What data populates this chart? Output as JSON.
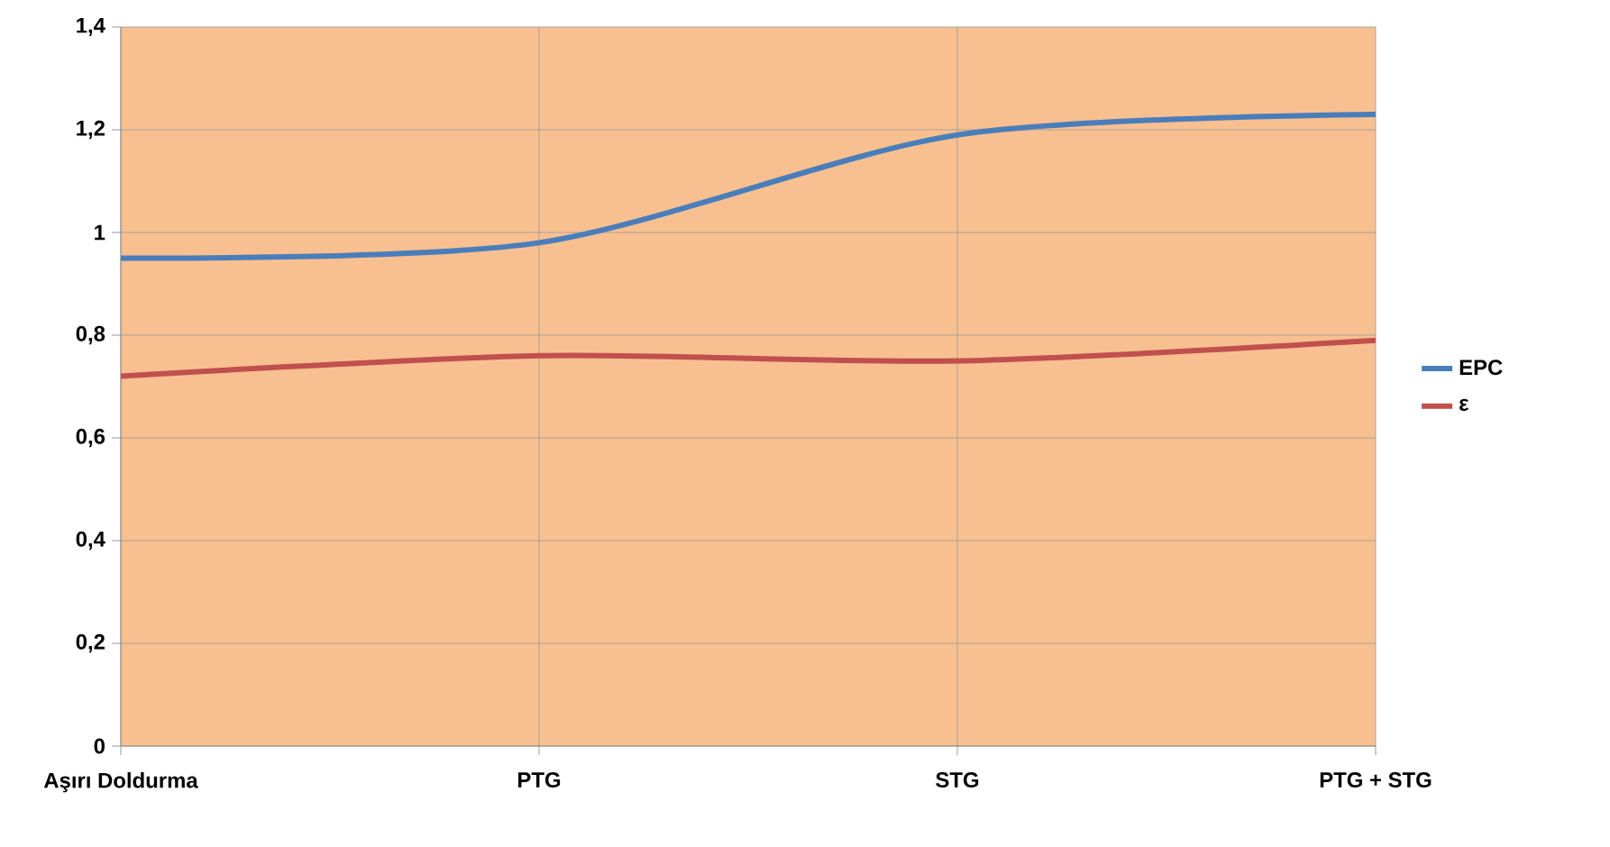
{
  "chart_data": {
    "type": "line",
    "categories": [
      "Aşırı Doldurma",
      "PTG",
      "STG",
      "PTG + STG"
    ],
    "series": [
      {
        "name": "EPC",
        "color": "#4a7ebb",
        "values": [
          0.95,
          0.98,
          1.19,
          1.23
        ]
      },
      {
        "name": "ε",
        "color": "#c0504d",
        "values": [
          0.72,
          0.76,
          0.75,
          0.79
        ]
      }
    ],
    "ylim": [
      0,
      1.4
    ],
    "yticks": [
      {
        "value": 0,
        "label": "0"
      },
      {
        "value": 0.2,
        "label": "0,2"
      },
      {
        "value": 0.4,
        "label": "0,4"
      },
      {
        "value": 0.6,
        "label": "0,6"
      },
      {
        "value": 0.8,
        "label": "0,8"
      },
      {
        "value": 1,
        "label": "1"
      },
      {
        "value": 1.2,
        "label": "1,2"
      },
      {
        "value": 1.4,
        "label": "1,4"
      }
    ],
    "grid": true,
    "legend": "right",
    "marker": "none",
    "line_style": "solid"
  }
}
